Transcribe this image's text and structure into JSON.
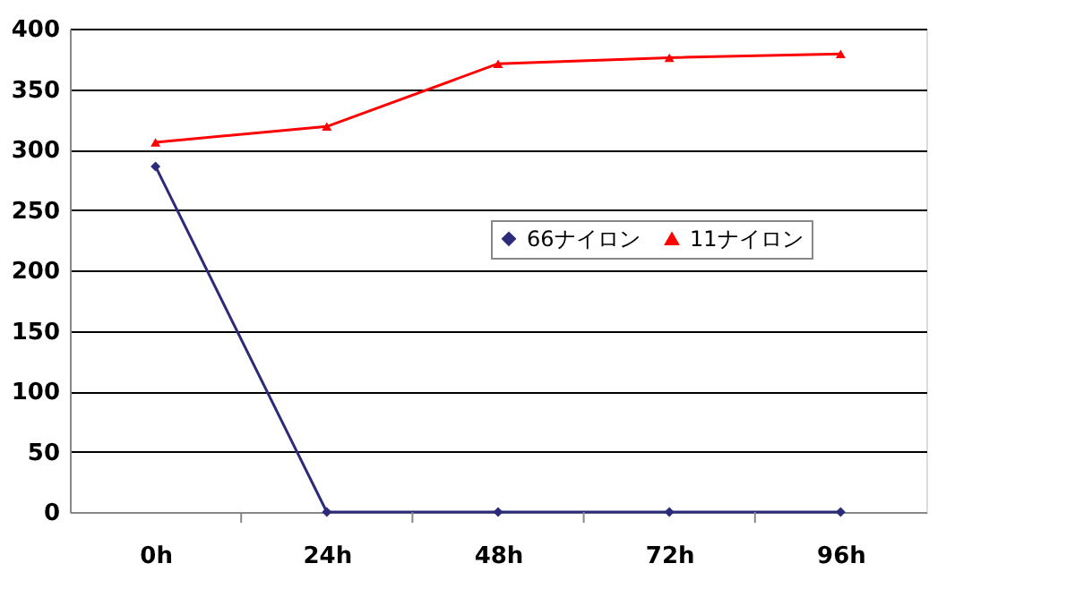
{
  "chart_data": {
    "type": "line",
    "categories": [
      "0h",
      "24h",
      "48h",
      "72h",
      "96h"
    ],
    "series": [
      {
        "name": "66ナイロン",
        "color": "#2b2b7a",
        "marker": "diamond",
        "values": [
          286,
          0,
          0,
          0,
          0
        ]
      },
      {
        "name": "11ナイロン",
        "color": "#ff0000",
        "marker": "triangle",
        "values": [
          306,
          319,
          371,
          376,
          379
        ]
      }
    ],
    "ylim": [
      0,
      400
    ],
    "yticks": [
      0,
      50,
      100,
      150,
      200,
      250,
      300,
      350,
      400
    ],
    "grid": "y",
    "legend": "right",
    "line_style": "solid"
  }
}
